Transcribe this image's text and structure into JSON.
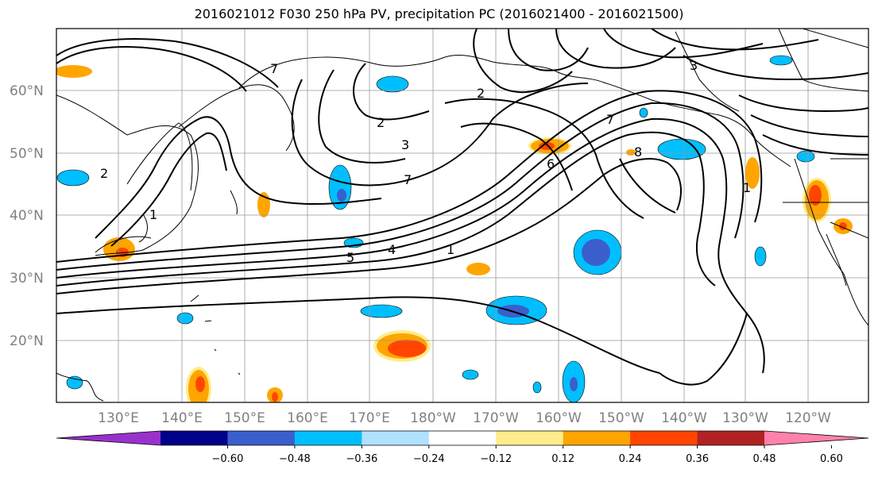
{
  "title": "2016021012 F030 250 hPa PV, precipitation PC (2016021400 - 2016021500)",
  "map": {
    "lat_labels": [
      "60°N",
      "50°N",
      "40°N",
      "30°N",
      "20°N"
    ],
    "lon_labels": [
      "130°E",
      "140°E",
      "150°E",
      "160°E",
      "170°E",
      "180°W",
      "170°W",
      "160°W",
      "150°W",
      "140°W",
      "130°W",
      "120°W"
    ],
    "contour_labels": [
      {
        "text": "1",
        "id": "c1"
      },
      {
        "text": "1",
        "id": "c2"
      },
      {
        "text": "1",
        "id": "c3"
      },
      {
        "text": "2",
        "id": "c4"
      },
      {
        "text": "2",
        "id": "c5"
      },
      {
        "text": "2",
        "id": "c6"
      },
      {
        "text": "3",
        "id": "c7"
      },
      {
        "text": "3",
        "id": "c8"
      },
      {
        "text": "4",
        "id": "c9"
      },
      {
        "text": "5",
        "id": "c10"
      },
      {
        "text": "6",
        "id": "c11"
      },
      {
        "text": "7",
        "id": "c12"
      },
      {
        "text": "7",
        "id": "c13"
      },
      {
        "text": "8",
        "id": "c14"
      },
      {
        "text": "7",
        "id": "c15"
      }
    ]
  },
  "colorbar": {
    "ticks": [
      "−0.60",
      "−0.48",
      "−0.36",
      "−0.24",
      "−0.12",
      "0.12",
      "0.24",
      "0.36",
      "0.48",
      "0.60"
    ],
    "colors": [
      "#9932cc",
      "#00008b",
      "#3a5fcd",
      "#00bfff",
      "#b0e2ff",
      "#ffffff",
      "#ffec8b",
      "#ffa500",
      "#ff4500",
      "#b22222",
      "#ff82ab"
    ]
  }
}
